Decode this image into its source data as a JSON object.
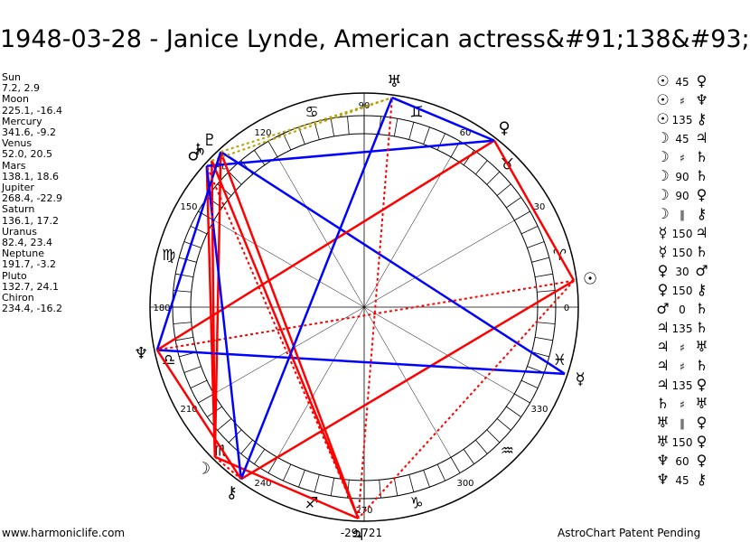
{
  "title": "1948-03-28 - Janice Lynde, American actress&#91;138&#93;",
  "positions": [
    {
      "name": "Sun",
      "value": "7.2, 2.9"
    },
    {
      "name": "Moon",
      "value": "225.1, -16.4"
    },
    {
      "name": "Mercury",
      "value": "341.6, -9.2"
    },
    {
      "name": "Venus",
      "value": "52.0, 20.5"
    },
    {
      "name": "Mars",
      "value": "138.1, 18.6"
    },
    {
      "name": "Jupiter",
      "value": "268.4, -22.9"
    },
    {
      "name": "Saturn",
      "value": "136.1, 17.2"
    },
    {
      "name": "Uranus",
      "value": "82.4, 23.4"
    },
    {
      "name": "Neptune",
      "value": "191.7, -3.2"
    },
    {
      "name": "Pluto",
      "value": "132.7, 24.1"
    },
    {
      "name": "Chiron",
      "value": "234.4, -16.2"
    }
  ],
  "aspects": [
    {
      "a": "☉",
      "val": "45",
      "b": "♀"
    },
    {
      "a": "☉",
      "val": "♯",
      "b": "♆"
    },
    {
      "a": "☉",
      "val": "135",
      "b": "⚷"
    },
    {
      "a": "☽",
      "val": "45",
      "b": "♃"
    },
    {
      "a": "☽",
      "val": "♯",
      "b": "♄"
    },
    {
      "a": "☽",
      "val": "90",
      "b": "♄"
    },
    {
      "a": "☽",
      "val": "90",
      "b": "♀"
    },
    {
      "a": "☽",
      "val": "∥",
      "b": "⚷"
    },
    {
      "a": "☿",
      "val": "150",
      "b": "♃"
    },
    {
      "a": "☿",
      "val": "150",
      "b": "♄"
    },
    {
      "a": "♀",
      "val": "30",
      "b": "♂"
    },
    {
      "a": "♀",
      "val": "150",
      "b": "⚷"
    },
    {
      "a": "♂",
      "val": "0",
      "b": "♄"
    },
    {
      "a": "♃",
      "val": "135",
      "b": "♄"
    },
    {
      "a": "♃",
      "val": "♯",
      "b": "♅"
    },
    {
      "a": "♃",
      "val": "♯",
      "b": "♄"
    },
    {
      "a": "♃",
      "val": "135",
      "b": "♀"
    },
    {
      "a": "♄",
      "val": "♯",
      "b": "♅"
    },
    {
      "a": "♅",
      "val": "∥",
      "b": "♀"
    },
    {
      "a": "♅",
      "val": "150",
      "b": "♀"
    },
    {
      "a": "♆",
      "val": "60",
      "b": "♀"
    },
    {
      "a": "♆",
      "val": "45",
      "b": "⚷"
    }
  ],
  "wheel": {
    "degree_labels": [
      "0",
      "30",
      "60",
      "90",
      "120",
      "150",
      "180",
      "210",
      "240",
      "270",
      "300",
      "330"
    ],
    "sign_glyphs": [
      "♈",
      "♉",
      "♊",
      "♋",
      "♌",
      "♍",
      "♎",
      "♏",
      "♐",
      "♑",
      "♒",
      "♓"
    ],
    "planets": [
      {
        "name": "Sun",
        "glyph": "☉",
        "lon": 7.2
      },
      {
        "name": "Moon",
        "glyph": "☽",
        "lon": 225.1
      },
      {
        "name": "Mercury",
        "glyph": "☿",
        "lon": 341.6
      },
      {
        "name": "Venus",
        "glyph": "♀",
        "lon": 52.0
      },
      {
        "name": "Mars",
        "glyph": "♂",
        "lon": 138.1
      },
      {
        "name": "Jupiter",
        "glyph": "♃",
        "lon": 268.4
      },
      {
        "name": "Saturn",
        "glyph": "♄",
        "lon": 136.1
      },
      {
        "name": "Uranus",
        "glyph": "♅",
        "lon": 82.4
      },
      {
        "name": "Neptune",
        "glyph": "♆",
        "lon": 191.7
      },
      {
        "name": "Pluto",
        "glyph": "♇",
        "lon": 132.7
      },
      {
        "name": "Chiron",
        "glyph": "⚷",
        "lon": 234.4
      }
    ],
    "aspect_lines": [
      {
        "from": "Sun",
        "to": "Venus",
        "color": "#ff0000",
        "style": "solid"
      },
      {
        "from": "Sun",
        "to": "Neptune",
        "color": "#ff0000",
        "style": "dotted"
      },
      {
        "from": "Sun",
        "to": "Chiron",
        "color": "#ff0000",
        "style": "solid"
      },
      {
        "from": "Moon",
        "to": "Jupiter",
        "color": "#ff0000",
        "style": "solid"
      },
      {
        "from": "Moon",
        "to": "Saturn",
        "color": "#ff0000",
        "style": "solid"
      },
      {
        "from": "Moon",
        "to": "Mars",
        "color": "#ff0000",
        "style": "solid"
      },
      {
        "from": "Moon",
        "to": "Pluto",
        "color": "#ff0000",
        "style": "solid"
      },
      {
        "from": "Moon",
        "to": "Chiron",
        "color": "#ff0000",
        "style": "dotted"
      },
      {
        "from": "Mercury",
        "to": "Pluto",
        "color": "#0000ff",
        "style": "solid"
      },
      {
        "from": "Mercury",
        "to": "Neptune",
        "color": "#0000ff",
        "style": "solid"
      },
      {
        "from": "Venus",
        "to": "Neptune",
        "color": "#ff0000",
        "style": "solid"
      },
      {
        "from": "Venus",
        "to": "Mars",
        "color": "#0000ff",
        "style": "solid"
      },
      {
        "from": "Mars",
        "to": "Chiron",
        "color": "#0000ff",
        "style": "solid"
      },
      {
        "from": "Jupiter",
        "to": "Saturn",
        "color": "#ff0000",
        "style": "solid"
      },
      {
        "from": "Jupiter",
        "to": "Uranus",
        "color": "#ff0000",
        "style": "dotted"
      },
      {
        "from": "Jupiter",
        "to": "Pluto",
        "color": "#ff0000",
        "style": "solid"
      },
      {
        "from": "Jupiter",
        "to": "Mars",
        "color": "#ff0000",
        "style": "dotted"
      },
      {
        "from": "Saturn",
        "to": "Uranus",
        "color": "#b8a000",
        "style": "dotted"
      },
      {
        "from": "Uranus",
        "to": "Chiron",
        "color": "#0000ff",
        "style": "solid"
      },
      {
        "from": "Uranus",
        "to": "Venus",
        "color": "#0000ff",
        "style": "solid"
      },
      {
        "from": "Neptune",
        "to": "Pluto",
        "color": "#0000ff",
        "style": "solid"
      },
      {
        "from": "Neptune",
        "to": "Chiron",
        "color": "#ff0000",
        "style": "solid"
      },
      {
        "from": "Sun",
        "to": "Jupiter",
        "color": "#ff0000",
        "style": "dotted"
      },
      {
        "from": "Moon",
        "to": "Saturn",
        "color": "#ff0000",
        "style": "dotted"
      },
      {
        "from": "Pluto",
        "to": "Uranus",
        "color": "#b8a000",
        "style": "dotted"
      }
    ],
    "bottom_value": "-29,721"
  },
  "footer": {
    "left": "www.harmoniclife.com",
    "right": "AstroChart Patent Pending"
  },
  "colors": {
    "red": "#ff0000",
    "blue": "#0000ff",
    "gold": "#b8a000"
  }
}
